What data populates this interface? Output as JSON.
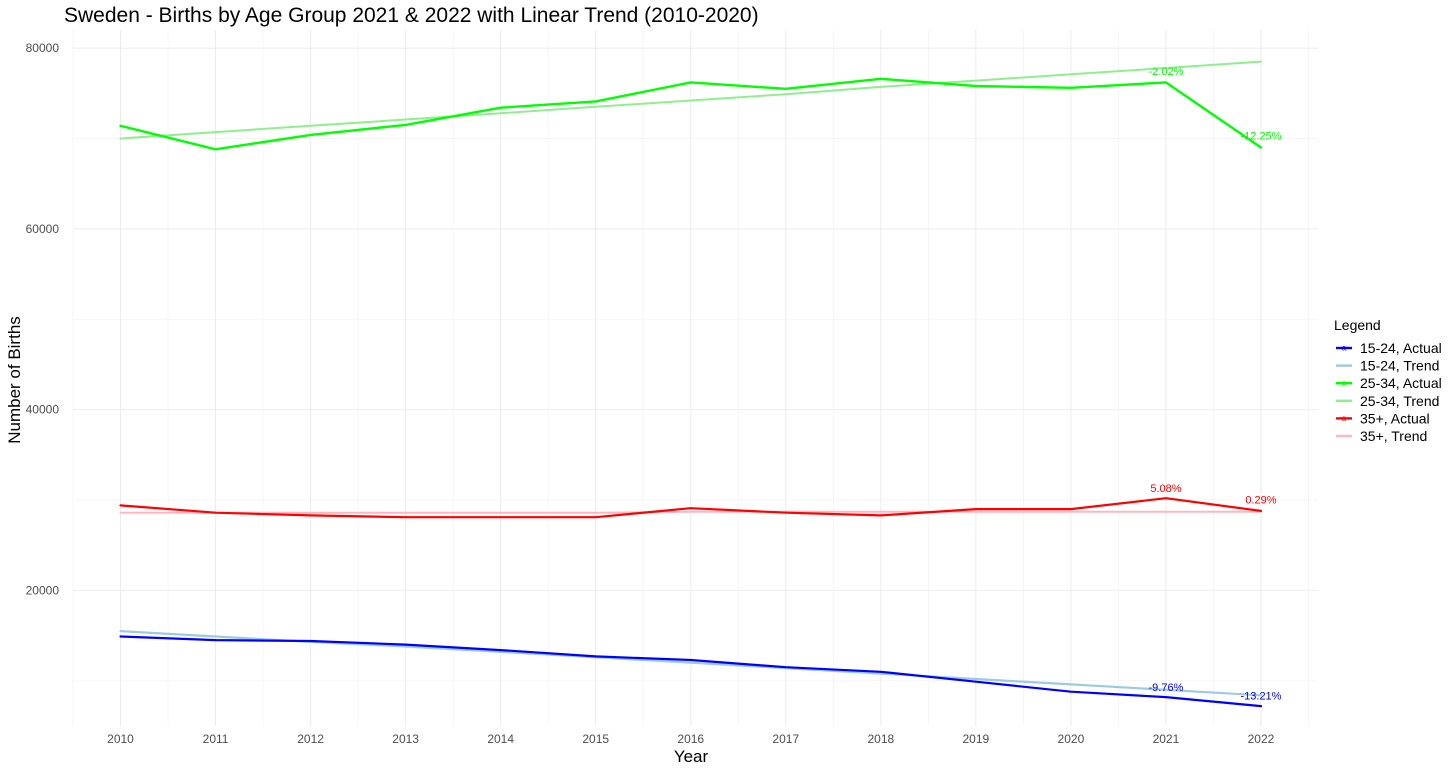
{
  "chart_data": {
    "type": "line",
    "title": "Sweden - Births by Age Group 2021 & 2022 with Linear Trend (2010-2020)",
    "xlabel": "Year",
    "ylabel": "Number of Births",
    "x": [
      2010,
      2011,
      2012,
      2013,
      2014,
      2015,
      2016,
      2017,
      2018,
      2019,
      2020,
      2021,
      2022
    ],
    "y_ticks": [
      20000,
      40000,
      60000,
      80000
    ],
    "y_tick_labels": [
      "20000",
      "40000",
      "60000",
      "80000"
    ],
    "ylim": [
      5000,
      82000
    ],
    "xlim": [
      2009.5,
      2022.6
    ],
    "grid": true,
    "legend_title": "Legend",
    "legend_position": "right",
    "series": [
      {
        "name": "15-24, Actual",
        "color": "#0000ff",
        "width": 2.2,
        "values": [
          14900,
          14500,
          14400,
          14000,
          13400,
          12700,
          12300,
          11500,
          11000,
          9900,
          8800,
          8200,
          7200
        ]
      },
      {
        "name": "15-24, Trend",
        "color": "#9ecae1",
        "width": 2.2,
        "values": [
          15500,
          14900,
          14300,
          13800,
          13200,
          12600,
          12000,
          11400,
          10800,
          10200,
          9600,
          9000,
          8400
        ]
      },
      {
        "name": "25-34, Actual",
        "color": "#00ff00",
        "width": 2.4,
        "values": [
          71400,
          68800,
          70400,
          71500,
          73400,
          74100,
          76200,
          75500,
          76600,
          75800,
          75600,
          76200,
          69000
        ]
      },
      {
        "name": "25-34, Trend",
        "color": "#90ee90",
        "width": 2.0,
        "values": [
          70000,
          70700,
          71400,
          72100,
          72800,
          73500,
          74200,
          74900,
          75700,
          76400,
          77100,
          77800,
          78500
        ]
      },
      {
        "name": "35+, Actual",
        "color": "#ff0000",
        "width": 2.2,
        "values": [
          29400,
          28600,
          28300,
          28100,
          28100,
          28100,
          29100,
          28600,
          28300,
          29000,
          29000,
          30200,
          28800
        ]
      },
      {
        "name": "35+, Trend",
        "color": "#ffb6c1",
        "width": 2.0,
        "values": [
          28600,
          28600,
          28600,
          28600,
          28600,
          28600,
          28700,
          28700,
          28700,
          28700,
          28700,
          28700,
          28700
        ]
      }
    ],
    "annotations": [
      {
        "x": 2021,
        "y": 77000,
        "text": "-2.02%",
        "color": "#00ff00"
      },
      {
        "x": 2022,
        "y": 69900,
        "text": "-12.25%",
        "color": "#00ff00"
      },
      {
        "x": 2021,
        "y": 30900,
        "text": "5.08%",
        "color": "#ff0000"
      },
      {
        "x": 2022,
        "y": 29600,
        "text": "0.29%",
        "color": "#ff0000"
      },
      {
        "x": 2021,
        "y": 8850,
        "text": "-9.76%",
        "color": "#0000ff"
      },
      {
        "x": 2022,
        "y": 7930,
        "text": "-13.21%",
        "color": "#0000ff"
      }
    ]
  }
}
